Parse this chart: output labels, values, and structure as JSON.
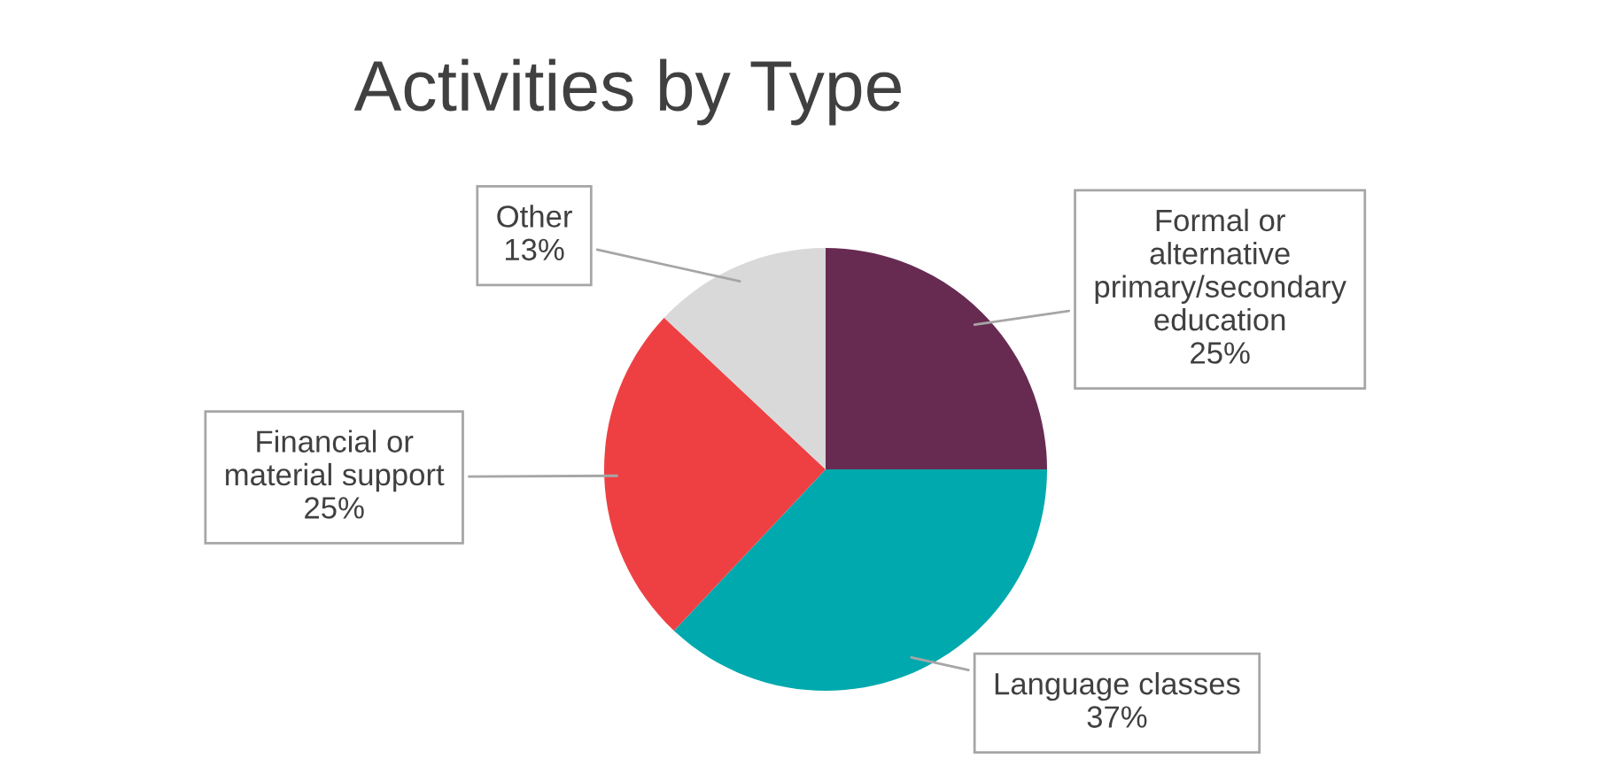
{
  "chart_data": {
    "type": "pie",
    "title": "Activities by Type",
    "categories": [
      "Formal or\nalternative\nprimary/secondary\neducation",
      "Language classes",
      "Financial or\nmaterial support",
      "Other"
    ],
    "values": [
      25,
      37,
      25,
      13
    ],
    "value_labels": [
      "25%",
      "37%",
      "25%",
      "13%"
    ],
    "colors": [
      "#672b52",
      "#00a9ad",
      "#ee4043",
      "#d9d9d9"
    ],
    "legend": false
  }
}
